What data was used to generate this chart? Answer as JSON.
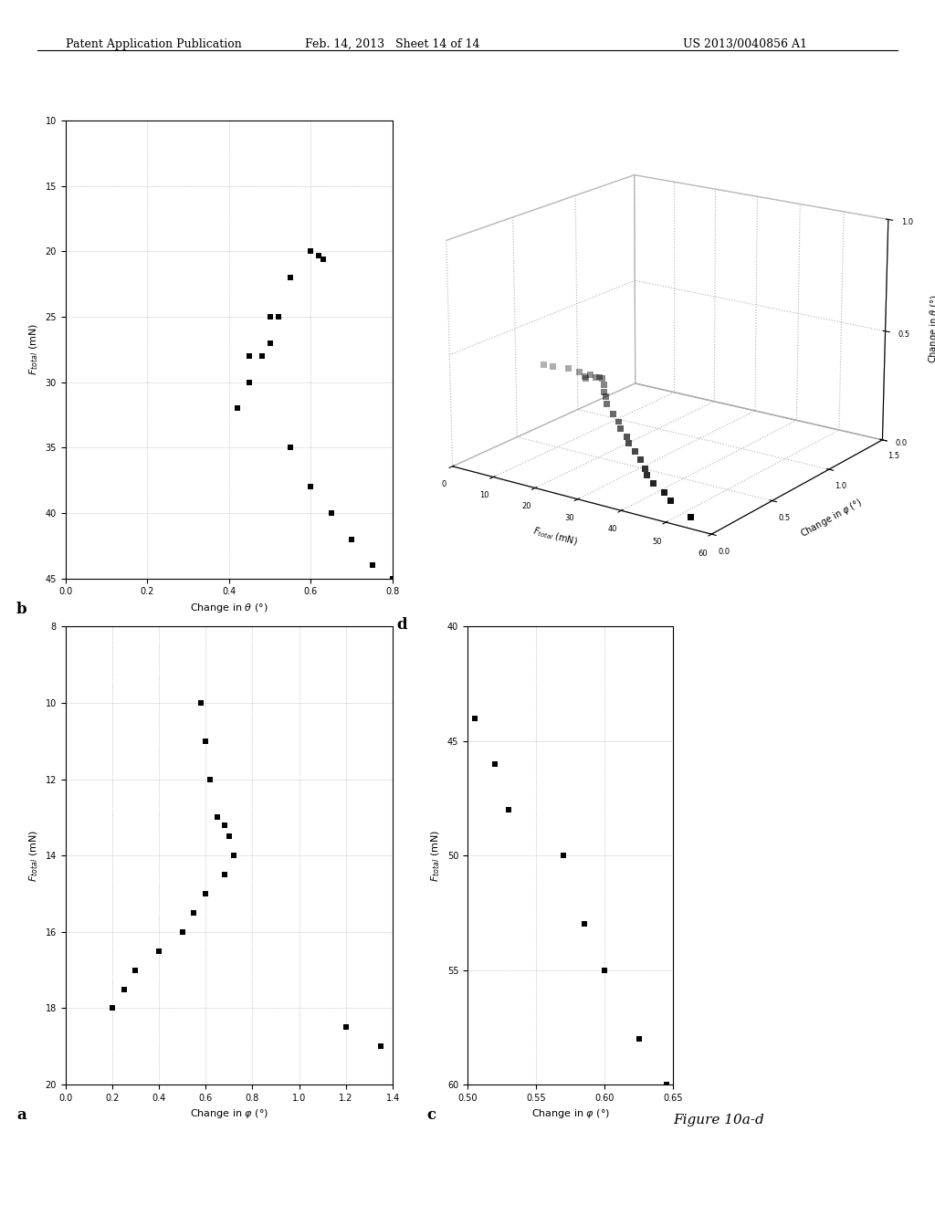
{
  "header_left": "Patent Application Publication",
  "header_center": "Feb. 14, 2013   Sheet 14 of 14",
  "header_right": "US 2013/0040856 A1",
  "figure_label": "Figure 10a-d",
  "plot_a": {
    "label": "a",
    "x": [
      10,
      11,
      12,
      13,
      13.2,
      13.5,
      14,
      14.5,
      15,
      15.5,
      16,
      16.5,
      17,
      17.5,
      18,
      18.5,
      19
    ],
    "y": [
      0.58,
      0.6,
      0.62,
      0.65,
      0.68,
      0.7,
      0.72,
      0.68,
      0.6,
      0.55,
      0.5,
      0.4,
      0.3,
      0.25,
      0.2,
      1.2,
      1.35
    ],
    "xlim": [
      8,
      20
    ],
    "ylim": [
      0.0,
      1.4
    ],
    "xticks": [
      8,
      10,
      12,
      14,
      16,
      18,
      20
    ],
    "yticks": [
      0.0,
      0.2,
      0.4,
      0.6,
      0.8,
      1.0,
      1.2,
      1.4
    ]
  },
  "plot_b": {
    "label": "b",
    "x": [
      20,
      20.3,
      20.6,
      22,
      25,
      27,
      28,
      30,
      32,
      35,
      38,
      40,
      42,
      44,
      45,
      25,
      28
    ],
    "y": [
      0.6,
      0.62,
      0.63,
      0.55,
      0.52,
      0.5,
      0.48,
      0.45,
      0.42,
      0.55,
      0.6,
      0.65,
      0.7,
      0.75,
      0.8,
      0.5,
      0.45
    ],
    "xlim": [
      10,
      45
    ],
    "ylim": [
      0.0,
      0.8
    ],
    "xticks": [
      10,
      15,
      20,
      25,
      30,
      35,
      40,
      45
    ],
    "yticks": [
      0.0,
      0.2,
      0.4,
      0.6,
      0.8
    ]
  },
  "plot_c": {
    "label": "c",
    "x": [
      44,
      46,
      48,
      50,
      53,
      55,
      58,
      60
    ],
    "y": [
      0.505,
      0.52,
      0.53,
      0.57,
      0.585,
      0.6,
      0.625,
      0.645
    ],
    "xlim": [
      40,
      60
    ],
    "ylim": [
      0.5,
      0.65
    ],
    "xticks": [
      40,
      45,
      50,
      55,
      60
    ],
    "yticks": [
      0.5,
      0.55,
      0.6,
      0.65
    ]
  },
  "plot_d": {
    "label": "d",
    "x": [
      10,
      12,
      15,
      18,
      20,
      20.5,
      21,
      22,
      23,
      24,
      25,
      26,
      27,
      28,
      30,
      32,
      33,
      35,
      36,
      38,
      40,
      42,
      43,
      45,
      48,
      50,
      55
    ],
    "phi": [
      0.4,
      0.41,
      0.43,
      0.42,
      0.4,
      0.39,
      0.41,
      0.42,
      0.41,
      0.4,
      0.38,
      0.35,
      0.33,
      0.3,
      0.28,
      0.26,
      0.24,
      0.22,
      0.2,
      0.18,
      0.15,
      0.12,
      0.1,
      0.08,
      0.06,
      0.04,
      0.02
    ],
    "theta": [
      0.4,
      0.4,
      0.4,
      0.4,
      0.39,
      0.39,
      0.4,
      0.39,
      0.4,
      0.4,
      0.38,
      0.36,
      0.35,
      0.33,
      0.3,
      0.28,
      0.26,
      0.24,
      0.22,
      0.2,
      0.18,
      0.16,
      0.14,
      0.12,
      0.1,
      0.08,
      0.04
    ],
    "xlim": [
      0,
      60
    ],
    "phi_lim": [
      0,
      1.5
    ],
    "theta_lim": [
      0,
      1.0
    ],
    "xticks": [
      0,
      10,
      20,
      30,
      40,
      50,
      60
    ],
    "phi_ticks": [
      0.0,
      0.5,
      1.0,
      1.5
    ],
    "theta_ticks": [
      0,
      0.5,
      1.0
    ]
  },
  "background_color": "#ffffff",
  "marker_color": "#000000",
  "marker_size": 5,
  "marker_style": "s"
}
